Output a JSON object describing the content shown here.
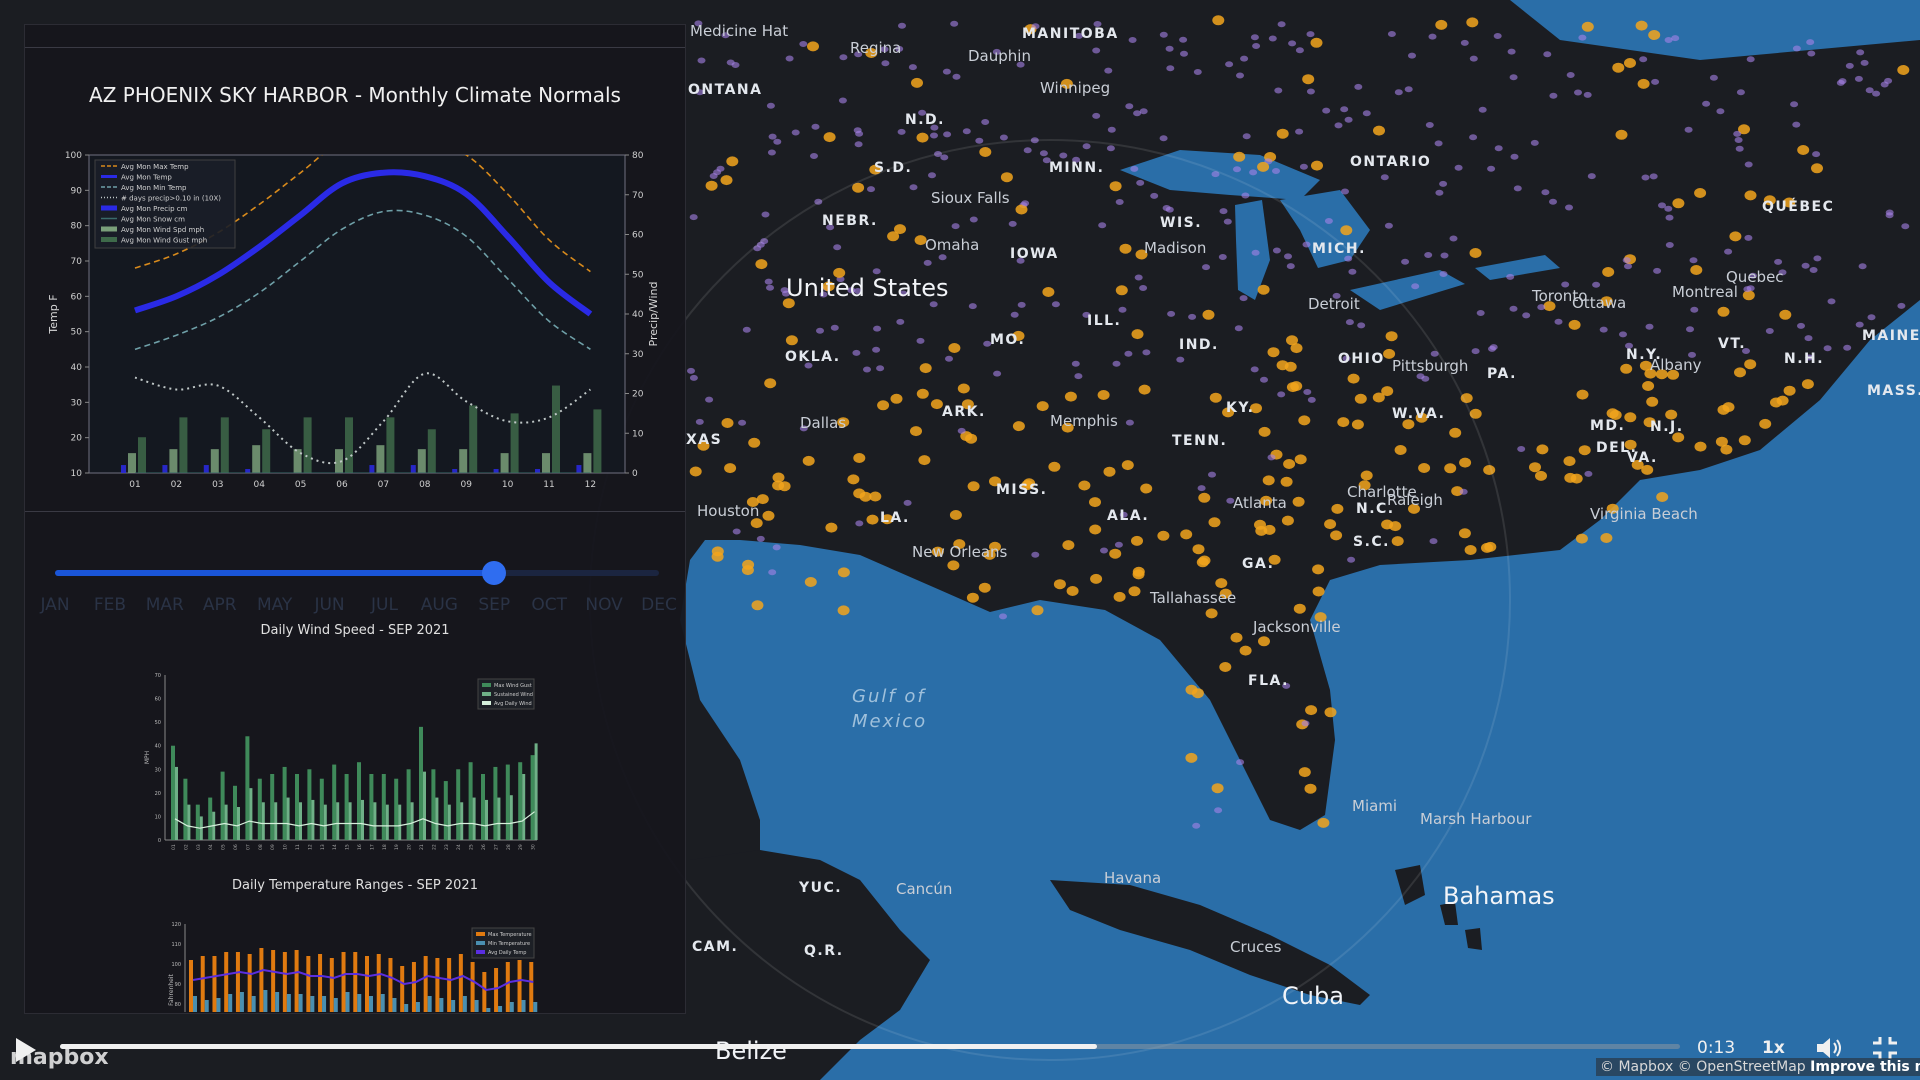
{
  "map": {
    "labels": [
      {
        "text": "Medicine Hat",
        "kind": "city"
      },
      {
        "text": "MANITOBA",
        "kind": "state"
      },
      {
        "text": "Regina",
        "kind": "city"
      },
      {
        "text": "Dauphin",
        "kind": "city"
      },
      {
        "text": "Winnipeg",
        "kind": "city"
      },
      {
        "text": "ONTANA",
        "kind": "state"
      },
      {
        "text": "N.D.",
        "kind": "state"
      },
      {
        "text": "S.D.",
        "kind": "state"
      },
      {
        "text": "MINN.",
        "kind": "state"
      },
      {
        "text": "ONTARIO",
        "kind": "state"
      },
      {
        "text": "QUÉBEC",
        "kind": "state"
      },
      {
        "text": "Sioux Falls",
        "kind": "city"
      },
      {
        "text": "NEBR.",
        "kind": "state"
      },
      {
        "text": "WIS.",
        "kind": "state"
      },
      {
        "text": "Omaha",
        "kind": "city"
      },
      {
        "text": "Madison",
        "kind": "city"
      },
      {
        "text": "MICH.",
        "kind": "state"
      },
      {
        "text": "IOWA",
        "kind": "state"
      },
      {
        "text": "United States",
        "kind": "country"
      },
      {
        "text": "Toronto",
        "kind": "city"
      },
      {
        "text": "Ottawa",
        "kind": "city"
      },
      {
        "text": "Montreal",
        "kind": "city"
      },
      {
        "text": "Quebec",
        "kind": "city"
      },
      {
        "text": "Detroit",
        "kind": "city"
      },
      {
        "text": "ILL.",
        "kind": "state"
      },
      {
        "text": "IND.",
        "kind": "state"
      },
      {
        "text": "MO.",
        "kind": "state"
      },
      {
        "text": "MAINE",
        "kind": "state"
      },
      {
        "text": "VT.",
        "kind": "state"
      },
      {
        "text": "N.Y.",
        "kind": "state"
      },
      {
        "text": "N.H.",
        "kind": "state"
      },
      {
        "text": "Albany",
        "kind": "city"
      },
      {
        "text": "OKLA.",
        "kind": "state"
      },
      {
        "text": "OHIO",
        "kind": "state"
      },
      {
        "text": "Pittsburgh",
        "kind": "city"
      },
      {
        "text": "PA.",
        "kind": "state"
      },
      {
        "text": "MASS.",
        "kind": "state"
      },
      {
        "text": "ARK.",
        "kind": "state"
      },
      {
        "text": "KY.",
        "kind": "state"
      },
      {
        "text": "Dallas",
        "kind": "city"
      },
      {
        "text": "Memphis",
        "kind": "city"
      },
      {
        "text": "W.VA.",
        "kind": "state"
      },
      {
        "text": "MD.",
        "kind": "state"
      },
      {
        "text": "DEL.",
        "kind": "state"
      },
      {
        "text": "N.J.",
        "kind": "state"
      },
      {
        "text": "XAS",
        "kind": "state"
      },
      {
        "text": "TENN.",
        "kind": "state"
      },
      {
        "text": "VA.",
        "kind": "state"
      },
      {
        "text": "MISS.",
        "kind": "state"
      },
      {
        "text": "Charlotte",
        "kind": "city"
      },
      {
        "text": "Houston",
        "kind": "city"
      },
      {
        "text": "LA.",
        "kind": "state"
      },
      {
        "text": "ALA.",
        "kind": "state"
      },
      {
        "text": "Atlanta",
        "kind": "city"
      },
      {
        "text": "N.C.",
        "kind": "state"
      },
      {
        "text": "Raleigh",
        "kind": "city"
      },
      {
        "text": "Virginia Beach",
        "kind": "city"
      },
      {
        "text": "New Orleans",
        "kind": "city"
      },
      {
        "text": "S.C.",
        "kind": "state"
      },
      {
        "text": "GA.",
        "kind": "state"
      },
      {
        "text": "Tallahassee",
        "kind": "city"
      },
      {
        "text": "Jacksonville",
        "kind": "city"
      },
      {
        "text": "FLA.",
        "kind": "state"
      },
      {
        "text": "Gulf of",
        "kind": "water"
      },
      {
        "text": "Mexico",
        "kind": "water"
      },
      {
        "text": "Miami",
        "kind": "city"
      },
      {
        "text": "Marsh Harbour",
        "kind": "city"
      },
      {
        "text": "YUC.",
        "kind": "state"
      },
      {
        "text": "Cancún",
        "kind": "city"
      },
      {
        "text": "Havana",
        "kind": "city"
      },
      {
        "text": "Bahamas",
        "kind": "country"
      },
      {
        "text": "CAM.",
        "kind": "state"
      },
      {
        "text": "Q.R.",
        "kind": "state"
      },
      {
        "text": "Cruces",
        "kind": "city"
      },
      {
        "text": "Cuba",
        "kind": "country"
      },
      {
        "text": "Belize",
        "kind": "country"
      }
    ]
  },
  "panel": {
    "normals_title": "AZ PHOENIX SKY HARBOR - Monthly Climate Normals",
    "wind_title": "Daily Wind Speed - SEP 2021",
    "temp_title": "Daily Temperature Ranges - SEP 2021",
    "slider": {
      "months": [
        "JAN",
        "FEB",
        "MAR",
        "APR",
        "MAY",
        "JUN",
        "JUL",
        "AUG",
        "SEP",
        "OCT",
        "NOV",
        "DEC"
      ],
      "selected_index": 8
    }
  },
  "controls": {
    "time": "0:13",
    "speed": "1x",
    "progress": 0.64,
    "logo": "mapbox",
    "attribution": "© Mapbox © OpenStreetMap",
    "improve": "Improve this map"
  },
  "colors": {
    "ocean": "#2a6ea8",
    "land": "#1b1d22",
    "accent_orange": "#f2a51c",
    "accent_purple": "#a782e8",
    "slider_blue": "#2f6df0"
  },
  "chart_data": [
    {
      "type": "line",
      "title": "AZ PHOENIX SKY HARBOR - Monthly Climate Normals",
      "ylabel": "Temp F",
      "y2label": "Precip/Wind",
      "categories": [
        "01",
        "02",
        "03",
        "04",
        "05",
        "06",
        "07",
        "08",
        "09",
        "10",
        "11",
        "12"
      ],
      "ylim": [
        10,
        100
      ],
      "y2lim": [
        0,
        80
      ],
      "yticks": [
        10,
        20,
        30,
        40,
        50,
        60,
        70,
        80,
        90,
        100
      ],
      "y2ticks": [
        0,
        10,
        20,
        30,
        40,
        50,
        60,
        70,
        80
      ],
      "legend_position": "top-left",
      "series": [
        {
          "name": "Avg Mon Max Temp",
          "axis": "left",
          "style": "dashed",
          "color": "#d88a1c",
          "values": [
            68,
            72,
            78,
            86,
            95,
            104,
            106,
            104,
            100,
            89,
            76,
            67
          ]
        },
        {
          "name": "Avg Mon Temp",
          "axis": "left",
          "style": "solid",
          "color": "#2a2ae6",
          "values": [
            56,
            60,
            66,
            74,
            83,
            92,
            95,
            94,
            89,
            77,
            64,
            55
          ]
        },
        {
          "name": "Avg Mon Min Temp",
          "axis": "left",
          "style": "dashed",
          "color": "#6fa0a8",
          "values": [
            45,
            49,
            54,
            61,
            70,
            79,
            84,
            83,
            77,
            65,
            53,
            45
          ]
        },
        {
          "name": "# days precip>0.10 in (10X)",
          "axis": "right",
          "style": "dotted",
          "color": "#c0c8c8",
          "values": [
            24,
            21,
            22,
            14,
            5,
            3,
            13,
            25,
            18,
            13,
            14,
            21
          ]
        },
        {
          "name": "Avg Mon Precip cm",
          "axis": "right",
          "style": "bar",
          "color": "#2a2ae6",
          "values": [
            2,
            2,
            2,
            1,
            0,
            0,
            2,
            2,
            1,
            1,
            1,
            2
          ]
        },
        {
          "name": "Avg Mon Snow cm",
          "axis": "right",
          "style": "line",
          "color": "#3a6a6a",
          "values": [
            0,
            0,
            0,
            0,
            0,
            0,
            0,
            0,
            0,
            0,
            0,
            0
          ]
        },
        {
          "name": "Avg Mon Wind Spd mph",
          "axis": "right",
          "style": "bar",
          "color": "#7aa07a",
          "values": [
            5,
            6,
            6,
            7,
            6,
            6,
            7,
            6,
            6,
            5,
            5,
            5
          ]
        },
        {
          "name": "Avg Mon Wind Gust mph",
          "axis": "right",
          "style": "bar",
          "color": "#3e6a4a",
          "values": [
            9,
            14,
            14,
            11,
            14,
            14,
            14,
            11,
            17,
            15,
            22,
            16
          ]
        }
      ]
    },
    {
      "type": "bar",
      "title": "Daily Wind Speed - SEP 2021",
      "ylabel": "MPH",
      "ylim": [
        0,
        70
      ],
      "yticks": [
        0,
        10,
        20,
        30,
        40,
        50,
        60,
        70
      ],
      "categories": [
        "01",
        "02",
        "03",
        "04",
        "05",
        "06",
        "07",
        "08",
        "09",
        "10",
        "11",
        "12",
        "13",
        "14",
        "15",
        "16",
        "17",
        "18",
        "19",
        "20",
        "21",
        "22",
        "23",
        "24",
        "25",
        "26",
        "27",
        "28",
        "29",
        "30"
      ],
      "legend_position": "top-right",
      "series": [
        {
          "name": "Max Wind Gust",
          "values": [
            40,
            26,
            15,
            18,
            29,
            23,
            44,
            26,
            28,
            31,
            28,
            30,
            26,
            32,
            28,
            33,
            28,
            28,
            26,
            30,
            48,
            30,
            25,
            30,
            33,
            28,
            31,
            32,
            33,
            36
          ]
        },
        {
          "name": "Sustained Wind",
          "values": [
            31,
            15,
            10,
            12,
            15,
            14,
            22,
            16,
            16,
            18,
            16,
            17,
            15,
            16,
            16,
            17,
            16,
            15,
            15,
            16,
            29,
            18,
            15,
            16,
            18,
            17,
            18,
            19,
            28,
            41
          ]
        },
        {
          "name": "Avg Daily Wind",
          "values": [
            9,
            6,
            5,
            6,
            7,
            6,
            8,
            7,
            7,
            7,
            6,
            7,
            6,
            7,
            7,
            7,
            6,
            6,
            6,
            7,
            9,
            7,
            6,
            7,
            7,
            6,
            7,
            7,
            8,
            12
          ]
        }
      ]
    },
    {
      "type": "bar",
      "title": "Daily Temperature Ranges - SEP 2021",
      "ylabel": "Fahrenheit",
      "ylim": [
        60,
        120
      ],
      "yticks": [
        60,
        70,
        80,
        90,
        100,
        110,
        120
      ],
      "legend_position": "top-right",
      "series": [
        {
          "name": "Max Temperature",
          "values": [
            102,
            104,
            104,
            106,
            106,
            105,
            108,
            107,
            106,
            107,
            104,
            105,
            103,
            106,
            106,
            104,
            105,
            103,
            99,
            101,
            104,
            103,
            103,
            105,
            101,
            96,
            98,
            101,
            102,
            101
          ]
        },
        {
          "name": "Min Temperature",
          "values": [
            84,
            82,
            83,
            85,
            86,
            84,
            87,
            86,
            85,
            85,
            84,
            84,
            83,
            86,
            85,
            84,
            85,
            83,
            80,
            81,
            84,
            83,
            82,
            84,
            82,
            78,
            79,
            81,
            82,
            81
          ]
        },
        {
          "name": "Avg Daily Temp",
          "values": [
            92,
            93,
            94,
            95,
            96,
            95,
            97,
            96,
            95,
            96,
            94,
            94,
            93,
            95,
            95,
            94,
            95,
            93,
            90,
            91,
            94,
            93,
            92,
            94,
            91,
            87,
            88,
            91,
            92,
            91
          ]
        }
      ]
    }
  ]
}
